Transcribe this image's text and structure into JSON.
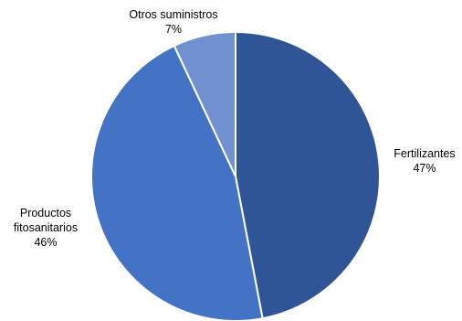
{
  "chart_data": {
    "type": "pie",
    "title": "",
    "slices": [
      {
        "name": "Fertilizantes",
        "value": 47,
        "label": "47%",
        "color": "#2f5597"
      },
      {
        "name": "Productos fitosanitarios",
        "value": 46,
        "label": "46%",
        "color": "#4472c4"
      },
      {
        "name": "Otros suministros",
        "value": 7,
        "label": "7%",
        "color": "#7090d0"
      }
    ],
    "legend": "none",
    "data_labels": "category-and-percent",
    "start_angle": "12 o'clock",
    "direction": "clockwise"
  }
}
